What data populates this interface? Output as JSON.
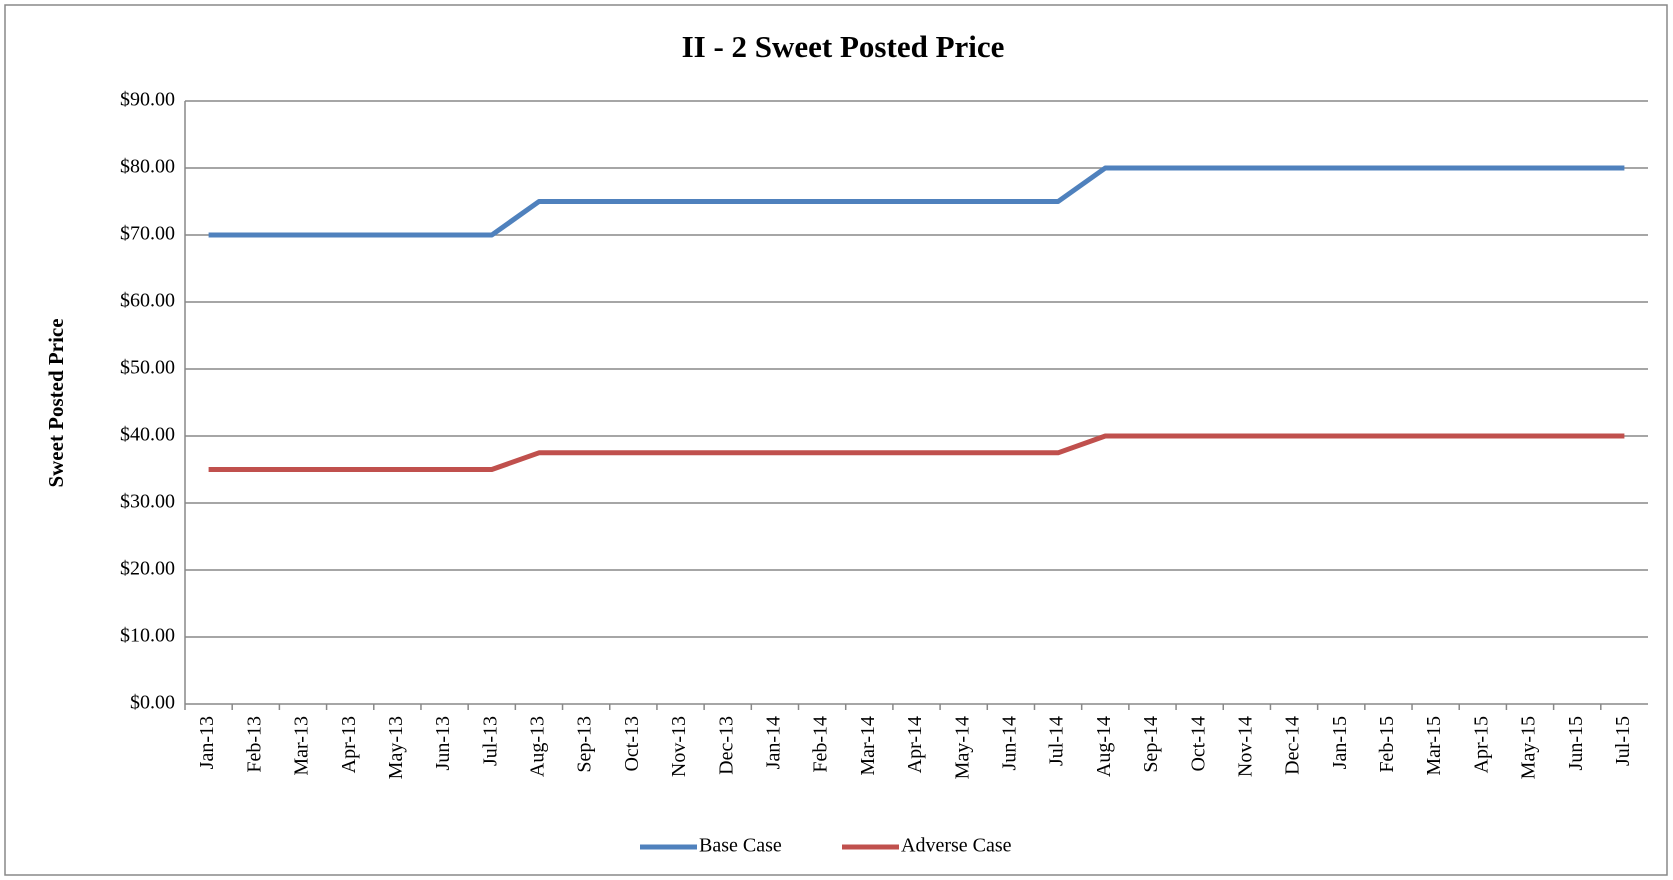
{
  "chart_data": {
    "type": "line",
    "title": "II - 2 Sweet Posted Price",
    "y_label": "Sweet Posted Price",
    "categories": [
      "Jan-13",
      "Feb-13",
      "Mar-13",
      "Apr-13",
      "May-13",
      "Jun-13",
      "Jul-13",
      "Aug-13",
      "Sep-13",
      "Oct-13",
      "Nov-13",
      "Dec-13",
      "Jan-14",
      "Feb-14",
      "Mar-14",
      "Apr-14",
      "May-14",
      "Jun-14",
      "Jul-14",
      "Aug-14",
      "Sep-14",
      "Oct-14",
      "Nov-14",
      "Dec-14",
      "Jan-15",
      "Feb-15",
      "Mar-15",
      "Apr-15",
      "May-15",
      "Jun-15",
      "Jul-15"
    ],
    "series": [
      {
        "name": "Base Case",
        "color": "#4f81bd",
        "values": [
          70,
          70,
          70,
          70,
          70,
          70,
          70,
          75,
          75,
          75,
          75,
          75,
          75,
          75,
          75,
          75,
          75,
          75,
          75,
          80,
          80,
          80,
          80,
          80,
          80,
          80,
          80,
          80,
          80,
          80,
          80
        ]
      },
      {
        "name": "Adverse Case",
        "color": "#c0504d",
        "values": [
          35,
          35,
          35,
          35,
          35,
          35,
          35,
          37.5,
          37.5,
          37.5,
          37.5,
          37.5,
          37.5,
          37.5,
          37.5,
          37.5,
          37.5,
          37.5,
          37.5,
          40,
          40,
          40,
          40,
          40,
          40,
          40,
          40,
          40,
          40,
          40,
          40
        ]
      }
    ],
    "ylim": [
      0,
      90
    ],
    "yticks": [
      {
        "value": 0,
        "label": "$0.00"
      },
      {
        "value": 10,
        "label": "$10.00"
      },
      {
        "value": 20,
        "label": "$20.00"
      },
      {
        "value": 30,
        "label": "$30.00"
      },
      {
        "value": 40,
        "label": "$40.00"
      },
      {
        "value": 50,
        "label": "$50.00"
      },
      {
        "value": 60,
        "label": "$60.00"
      },
      {
        "value": 70,
        "label": "$70.00"
      },
      {
        "value": 80,
        "label": "$80.00"
      },
      {
        "value": 90,
        "label": "$90.00"
      }
    ],
    "grid": true,
    "legend": "bottom"
  }
}
